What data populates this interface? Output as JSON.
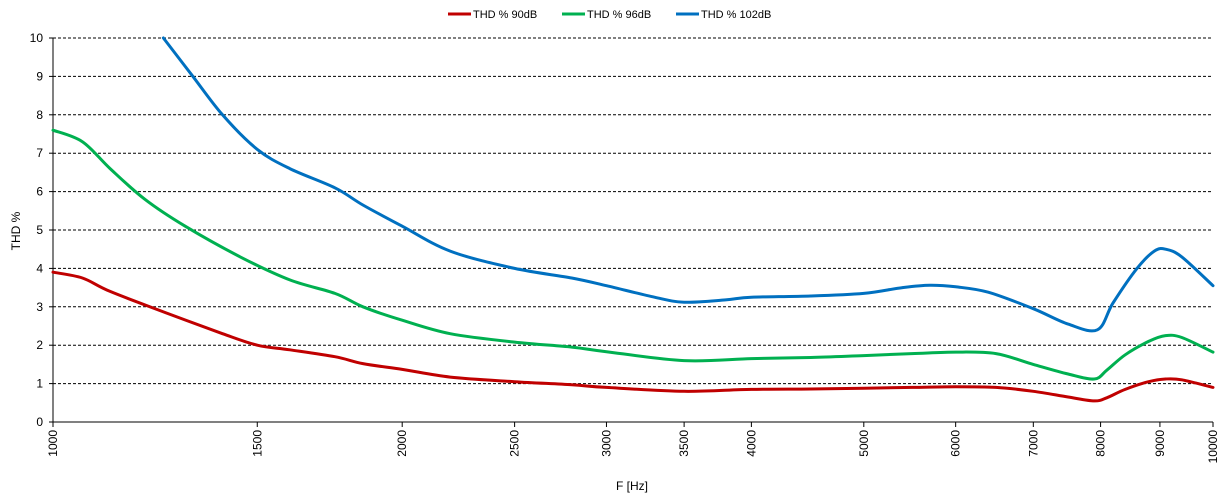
{
  "chart_data": {
    "type": "line",
    "xlabel": "F [Hz]",
    "ylabel": "THD %",
    "x_scale": "log",
    "xlim": [
      1000,
      10000
    ],
    "ylim": [
      0,
      10
    ],
    "yticks": [
      0,
      1,
      2,
      3,
      4,
      5,
      6,
      7,
      8,
      9,
      10
    ],
    "xticks": [
      1000,
      1500,
      2000,
      2500,
      3000,
      3500,
      4000,
      5000,
      6000,
      7000,
      8000,
      9000,
      10000
    ],
    "xtick_labels": [
      "1000",
      "1500",
      "2000",
      "2500",
      "3000",
      "3500",
      "4000",
      "5000",
      "6000",
      "7000",
      "8000",
      "9000",
      "10000"
    ],
    "grid": "horizontal-dashed",
    "legend_position": "top",
    "series": [
      {
        "name": "THD % 90dB",
        "color": "#c00000",
        "x": [
          1000,
          1060,
          1120,
          1250,
          1400,
          1500,
          1600,
          1750,
          1850,
          2000,
          2200,
          2500,
          2800,
          3000,
          3500,
          4000,
          4500,
          5000,
          5500,
          6000,
          6500,
          7000,
          7500,
          7900,
          8100,
          8400,
          8800,
          9100,
          9400,
          10000
        ],
        "values": [
          3.9,
          3.75,
          3.4,
          2.85,
          2.3,
          2.0,
          1.88,
          1.7,
          1.52,
          1.37,
          1.17,
          1.05,
          0.97,
          0.9,
          0.8,
          0.85,
          0.86,
          0.88,
          0.9,
          0.92,
          0.9,
          0.8,
          0.65,
          0.55,
          0.63,
          0.85,
          1.05,
          1.12,
          1.1,
          0.9
        ]
      },
      {
        "name": "THD % 96dB",
        "color": "#00b050",
        "x": [
          1000,
          1060,
          1120,
          1200,
          1300,
          1450,
          1600,
          1750,
          1850,
          2000,
          2200,
          2500,
          2800,
          3000,
          3500,
          4000,
          4500,
          5000,
          5500,
          6000,
          6500,
          7000,
          7500,
          7900,
          8100,
          8400,
          8800,
          9100,
          9400,
          10000
        ],
        "values": [
          7.6,
          7.3,
          6.6,
          5.8,
          5.1,
          4.3,
          3.7,
          3.35,
          3.0,
          2.65,
          2.3,
          2.08,
          1.95,
          1.83,
          1.6,
          1.65,
          1.68,
          1.73,
          1.78,
          1.82,
          1.78,
          1.5,
          1.25,
          1.12,
          1.35,
          1.75,
          2.1,
          2.25,
          2.2,
          1.82
        ]
      },
      {
        "name": "THD % 102dB",
        "color": "#0070c0",
        "x": [
          1245,
          1320,
          1400,
          1500,
          1600,
          1750,
          1850,
          2000,
          2200,
          2500,
          2800,
          3000,
          3300,
          3500,
          3800,
          4000,
          4500,
          5000,
          5400,
          5700,
          6000,
          6400,
          7000,
          7500,
          7950,
          8200,
          8600,
          8900,
          9100,
          9400,
          10000
        ],
        "values": [
          10.0,
          9.0,
          8.0,
          7.1,
          6.6,
          6.1,
          5.65,
          5.1,
          4.45,
          4.0,
          3.75,
          3.55,
          3.25,
          3.12,
          3.18,
          3.25,
          3.28,
          3.35,
          3.5,
          3.56,
          3.52,
          3.38,
          2.95,
          2.55,
          2.4,
          3.1,
          4.0,
          4.45,
          4.5,
          4.3,
          3.55
        ]
      }
    ]
  }
}
